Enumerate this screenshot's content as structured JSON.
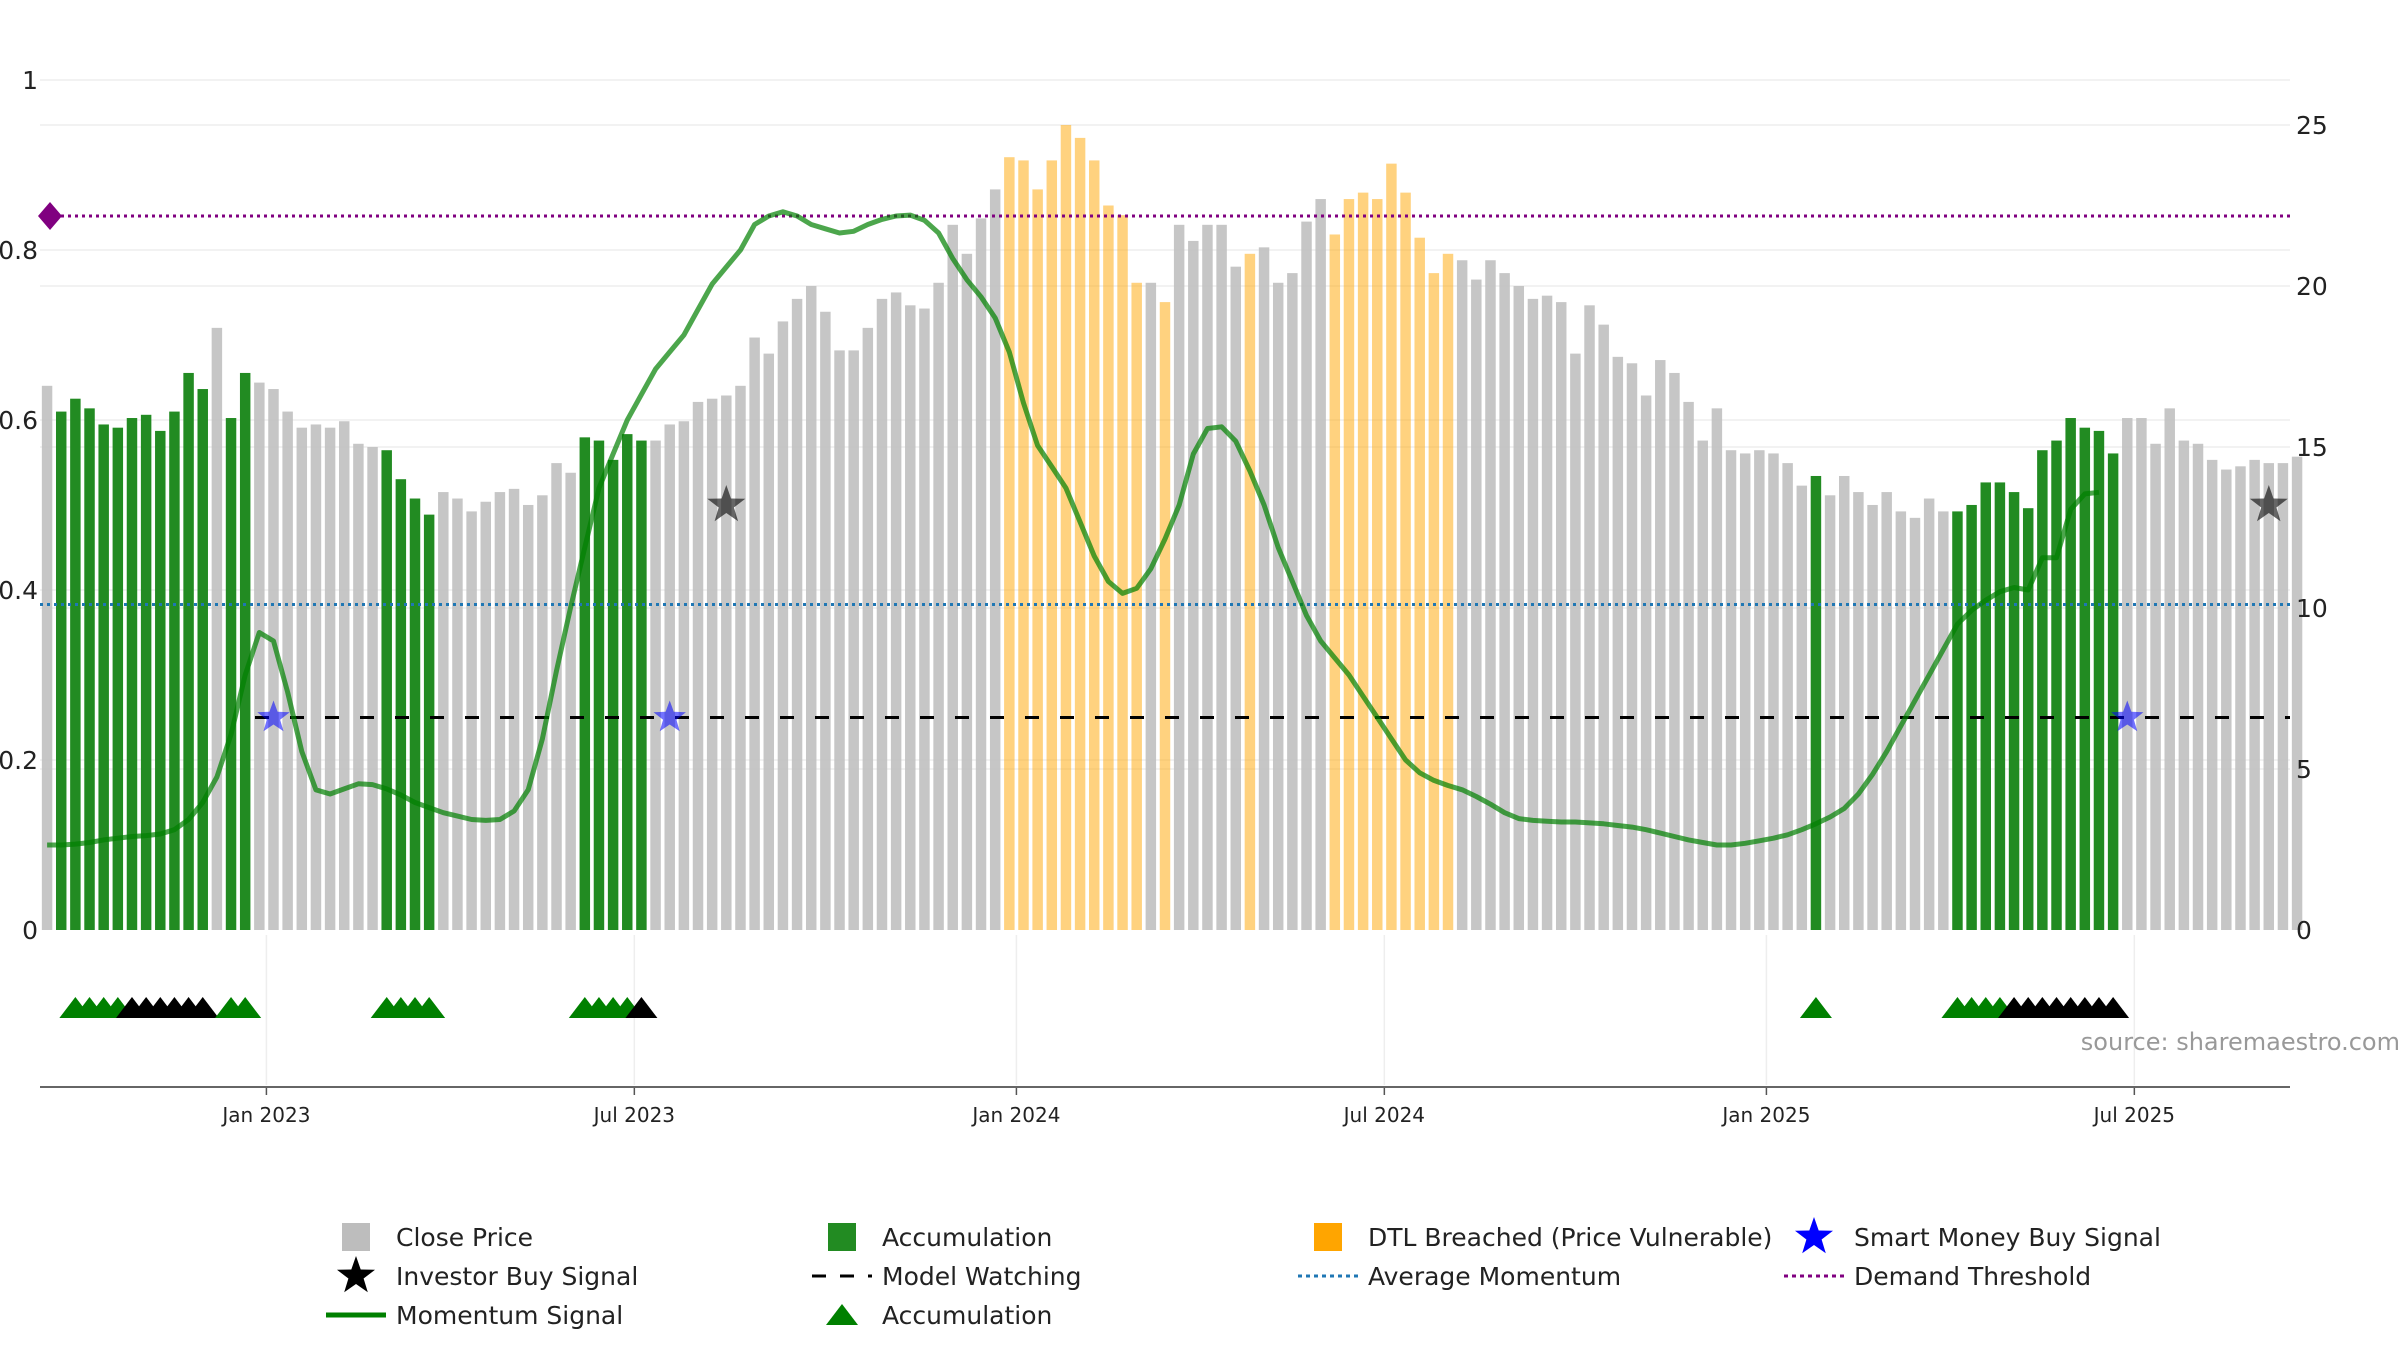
{
  "chart_data": {
    "type": "bar+line",
    "source": "source: sharemaestro.com",
    "left_axis": {
      "ticks": [
        "0",
        "0.2",
        "0.4",
        "0.6",
        "0.8",
        "1"
      ],
      "ylim": [
        0,
        1
      ]
    },
    "right_axis": {
      "ticks": [
        "0",
        "5",
        "10",
        "15",
        "20",
        "25"
      ],
      "ylim": [
        0,
        25
      ]
    },
    "x_ticks": [
      "Jan 2023",
      "Jul 2023",
      "Jan 2024",
      "Jul 2024",
      "Jan 2025",
      "Jul 2025"
    ],
    "x_tick_weeks": [
      16,
      42,
      69,
      95,
      122,
      148
    ],
    "weeks": 159,
    "close_price": [
      16.9,
      16.1,
      16.5,
      16.2,
      15.7,
      15.6,
      15.9,
      16.0,
      15.5,
      16.1,
      17.3,
      16.8,
      18.7,
      15.9,
      17.3,
      17.0,
      16.8,
      16.1,
      15.6,
      15.7,
      15.6,
      15.8,
      15.1,
      15.0,
      14.9,
      14.0,
      13.4,
      12.9,
      13.6,
      13.4,
      13.0,
      13.3,
      13.6,
      13.7,
      13.2,
      13.5,
      14.5,
      14.2,
      15.3,
      15.2,
      14.6,
      15.4,
      15.2,
      15.2,
      15.7,
      15.8,
      16.4,
      16.5,
      16.6,
      16.9,
      18.4,
      17.9,
      18.9,
      19.6,
      20.0,
      19.2,
      18.0,
      18.0,
      18.7,
      19.6,
      19.8,
      19.4,
      19.3,
      20.1,
      21.9,
      21.0,
      22.1,
      23.0,
      24.0,
      23.9,
      23.0,
      23.9,
      25.0,
      24.6,
      23.9,
      22.5,
      22.2,
      20.1,
      20.1,
      19.5,
      21.9,
      21.4,
      21.9,
      21.9,
      20.6,
      21.0,
      21.2,
      20.1,
      20.4,
      22.0,
      22.7,
      21.6,
      22.7,
      22.9,
      22.7,
      23.8,
      22.9,
      21.5,
      20.4,
      21.0,
      20.8,
      20.2,
      20.8,
      20.4,
      20.0,
      19.6,
      19.7,
      19.5,
      17.9,
      19.4,
      18.8,
      17.8,
      17.6,
      16.6,
      17.7,
      17.3,
      16.4,
      15.2,
      16.2,
      14.9,
      14.8,
      14.9,
      14.8,
      14.5,
      13.8,
      14.1,
      13.5,
      14.1,
      13.6,
      13.2,
      13.6,
      13.0,
      12.8,
      13.4,
      13.0,
      13.0,
      13.2,
      13.9,
      13.9,
      13.6,
      13.1,
      14.9,
      15.2,
      15.9,
      15.6,
      15.5,
      14.8,
      15.9,
      15.9,
      15.1,
      16.2,
      15.2,
      15.1,
      14.6,
      14.3,
      14.4,
      14.6,
      14.5,
      14.5,
      14.7
    ],
    "accumulation_weeks": [
      1,
      2,
      3,
      4,
      5,
      6,
      7,
      8,
      9,
      10,
      11,
      13,
      14,
      24,
      25,
      26,
      27,
      38,
      39,
      40,
      41,
      42,
      125,
      135,
      136,
      137,
      138,
      139,
      140,
      141,
      142,
      143,
      144,
      145,
      146
    ],
    "dtl_breached_weeks": [
      68,
      69,
      70,
      71,
      72,
      73,
      74,
      75,
      76,
      77,
      79,
      85,
      91,
      92,
      93,
      94,
      95,
      96,
      97,
      98,
      99
    ],
    "momentum_signal": [
      0.1,
      0.1,
      0.101,
      0.103,
      0.106,
      0.108,
      0.11,
      0.111,
      0.113,
      0.118,
      0.13,
      0.15,
      0.18,
      0.23,
      0.3,
      0.35,
      0.34,
      0.28,
      0.21,
      0.165,
      0.16,
      0.166,
      0.172,
      0.171,
      0.166,
      0.159,
      0.15,
      0.144,
      0.138,
      0.134,
      0.13,
      0.129,
      0.13,
      0.14,
      0.165,
      0.225,
      0.305,
      0.38,
      0.45,
      0.52,
      0.56,
      0.6,
      0.63,
      0.66,
      0.68,
      0.7,
      0.73,
      0.76,
      0.78,
      0.8,
      0.83,
      0.84,
      0.845,
      0.84,
      0.83,
      0.825,
      0.82,
      0.822,
      0.83,
      0.836,
      0.84,
      0.841,
      0.835,
      0.82,
      0.79,
      0.765,
      0.745,
      0.72,
      0.68,
      0.62,
      0.57,
      0.545,
      0.52,
      0.48,
      0.44,
      0.41,
      0.396,
      0.402,
      0.425,
      0.46,
      0.5,
      0.56,
      0.59,
      0.592,
      0.575,
      0.54,
      0.5,
      0.45,
      0.41,
      0.37,
      0.34,
      0.32,
      0.3,
      0.275,
      0.25,
      0.225,
      0.2,
      0.185,
      0.176,
      0.17,
      0.165,
      0.157,
      0.148,
      0.138,
      0.131,
      0.129,
      0.128,
      0.127,
      0.127,
      0.126,
      0.125,
      0.123,
      0.121,
      0.118,
      0.114,
      0.11,
      0.106,
      0.103,
      0.1,
      0.1,
      0.102,
      0.105,
      0.108,
      0.112,
      0.118,
      0.125,
      0.133,
      0.143,
      0.16,
      0.183,
      0.21,
      0.24,
      0.27,
      0.3,
      0.33,
      0.36,
      0.376,
      0.388,
      0.398,
      0.403,
      0.4,
      0.438,
      0.438,
      0.495,
      0.513,
      0.515
    ],
    "average_momentum": 0.383,
    "demand_threshold": 0.84,
    "model_watching": 0.25,
    "investor_buy_signals": [
      {
        "week": 48,
        "value": 0.5
      },
      {
        "week": 157,
        "value": 0.5
      }
    ],
    "smart_money_buy_signals": [
      {
        "week": 16,
        "value": 0.25
      },
      {
        "week": 44,
        "value": 0.25
      },
      {
        "week": 147,
        "value": 0.25
      }
    ],
    "accumulation_markers": [
      {
        "week": 2,
        "color": "green"
      },
      {
        "week": 3,
        "color": "green"
      },
      {
        "week": 4,
        "color": "green"
      },
      {
        "week": 5,
        "color": "green"
      },
      {
        "week": 6,
        "color": "black"
      },
      {
        "week": 7,
        "color": "black"
      },
      {
        "week": 8,
        "color": "black"
      },
      {
        "week": 9,
        "color": "black"
      },
      {
        "week": 10,
        "color": "black"
      },
      {
        "week": 11,
        "color": "black"
      },
      {
        "week": 13,
        "color": "green"
      },
      {
        "week": 14,
        "color": "green"
      },
      {
        "week": 24,
        "color": "green"
      },
      {
        "week": 25,
        "color": "green"
      },
      {
        "week": 26,
        "color": "green"
      },
      {
        "week": 27,
        "color": "green"
      },
      {
        "week": 38,
        "color": "green"
      },
      {
        "week": 39,
        "color": "green"
      },
      {
        "week": 40,
        "color": "green"
      },
      {
        "week": 41,
        "color": "green"
      },
      {
        "week": 42,
        "color": "black"
      },
      {
        "week": 125,
        "color": "green"
      },
      {
        "week": 135,
        "color": "green"
      },
      {
        "week": 136,
        "color": "green"
      },
      {
        "week": 137,
        "color": "green"
      },
      {
        "week": 138,
        "color": "green"
      },
      {
        "week": 139,
        "color": "black"
      },
      {
        "week": 140,
        "color": "black"
      },
      {
        "week": 141,
        "color": "black"
      },
      {
        "week": 142,
        "color": "black"
      },
      {
        "week": 143,
        "color": "black"
      },
      {
        "week": 144,
        "color": "black"
      },
      {
        "week": 145,
        "color": "black"
      },
      {
        "week": 146,
        "color": "black"
      }
    ],
    "colors": {
      "close_price": "#c0c0c0",
      "accumulation": "#228b22",
      "dtl_breached": "#ffa500",
      "momentum_signal": "#008000",
      "model_watching": "#000000",
      "average_momentum": "#1f77b4",
      "demand_threshold": "#800080",
      "smart_money": "#0000ff",
      "investor": "#000000"
    },
    "legend": [
      {
        "label": "Close Price",
        "symbol": "square",
        "color": "#bdbdbd"
      },
      {
        "label": "Accumulation",
        "symbol": "square",
        "color": "#228b22"
      },
      {
        "label": "DTL Breached (Price Vulnerable)",
        "symbol": "square",
        "color": "#ffa500"
      },
      {
        "label": "Smart Money Buy Signal",
        "symbol": "star",
        "color": "#0000ff"
      },
      {
        "label": "Investor Buy Signal",
        "symbol": "star",
        "color": "#000000"
      },
      {
        "label": "Model Watching",
        "symbol": "dash",
        "color": "#000000"
      },
      {
        "label": "Average Momentum",
        "symbol": "dot",
        "color": "#1f77b4"
      },
      {
        "label": "Demand Threshold",
        "symbol": "dot",
        "color": "#800080"
      },
      {
        "label": "Momentum Signal",
        "symbol": "line",
        "color": "#008000"
      },
      {
        "label": "Accumulation",
        "symbol": "triangle",
        "color": "#008000"
      }
    ]
  }
}
